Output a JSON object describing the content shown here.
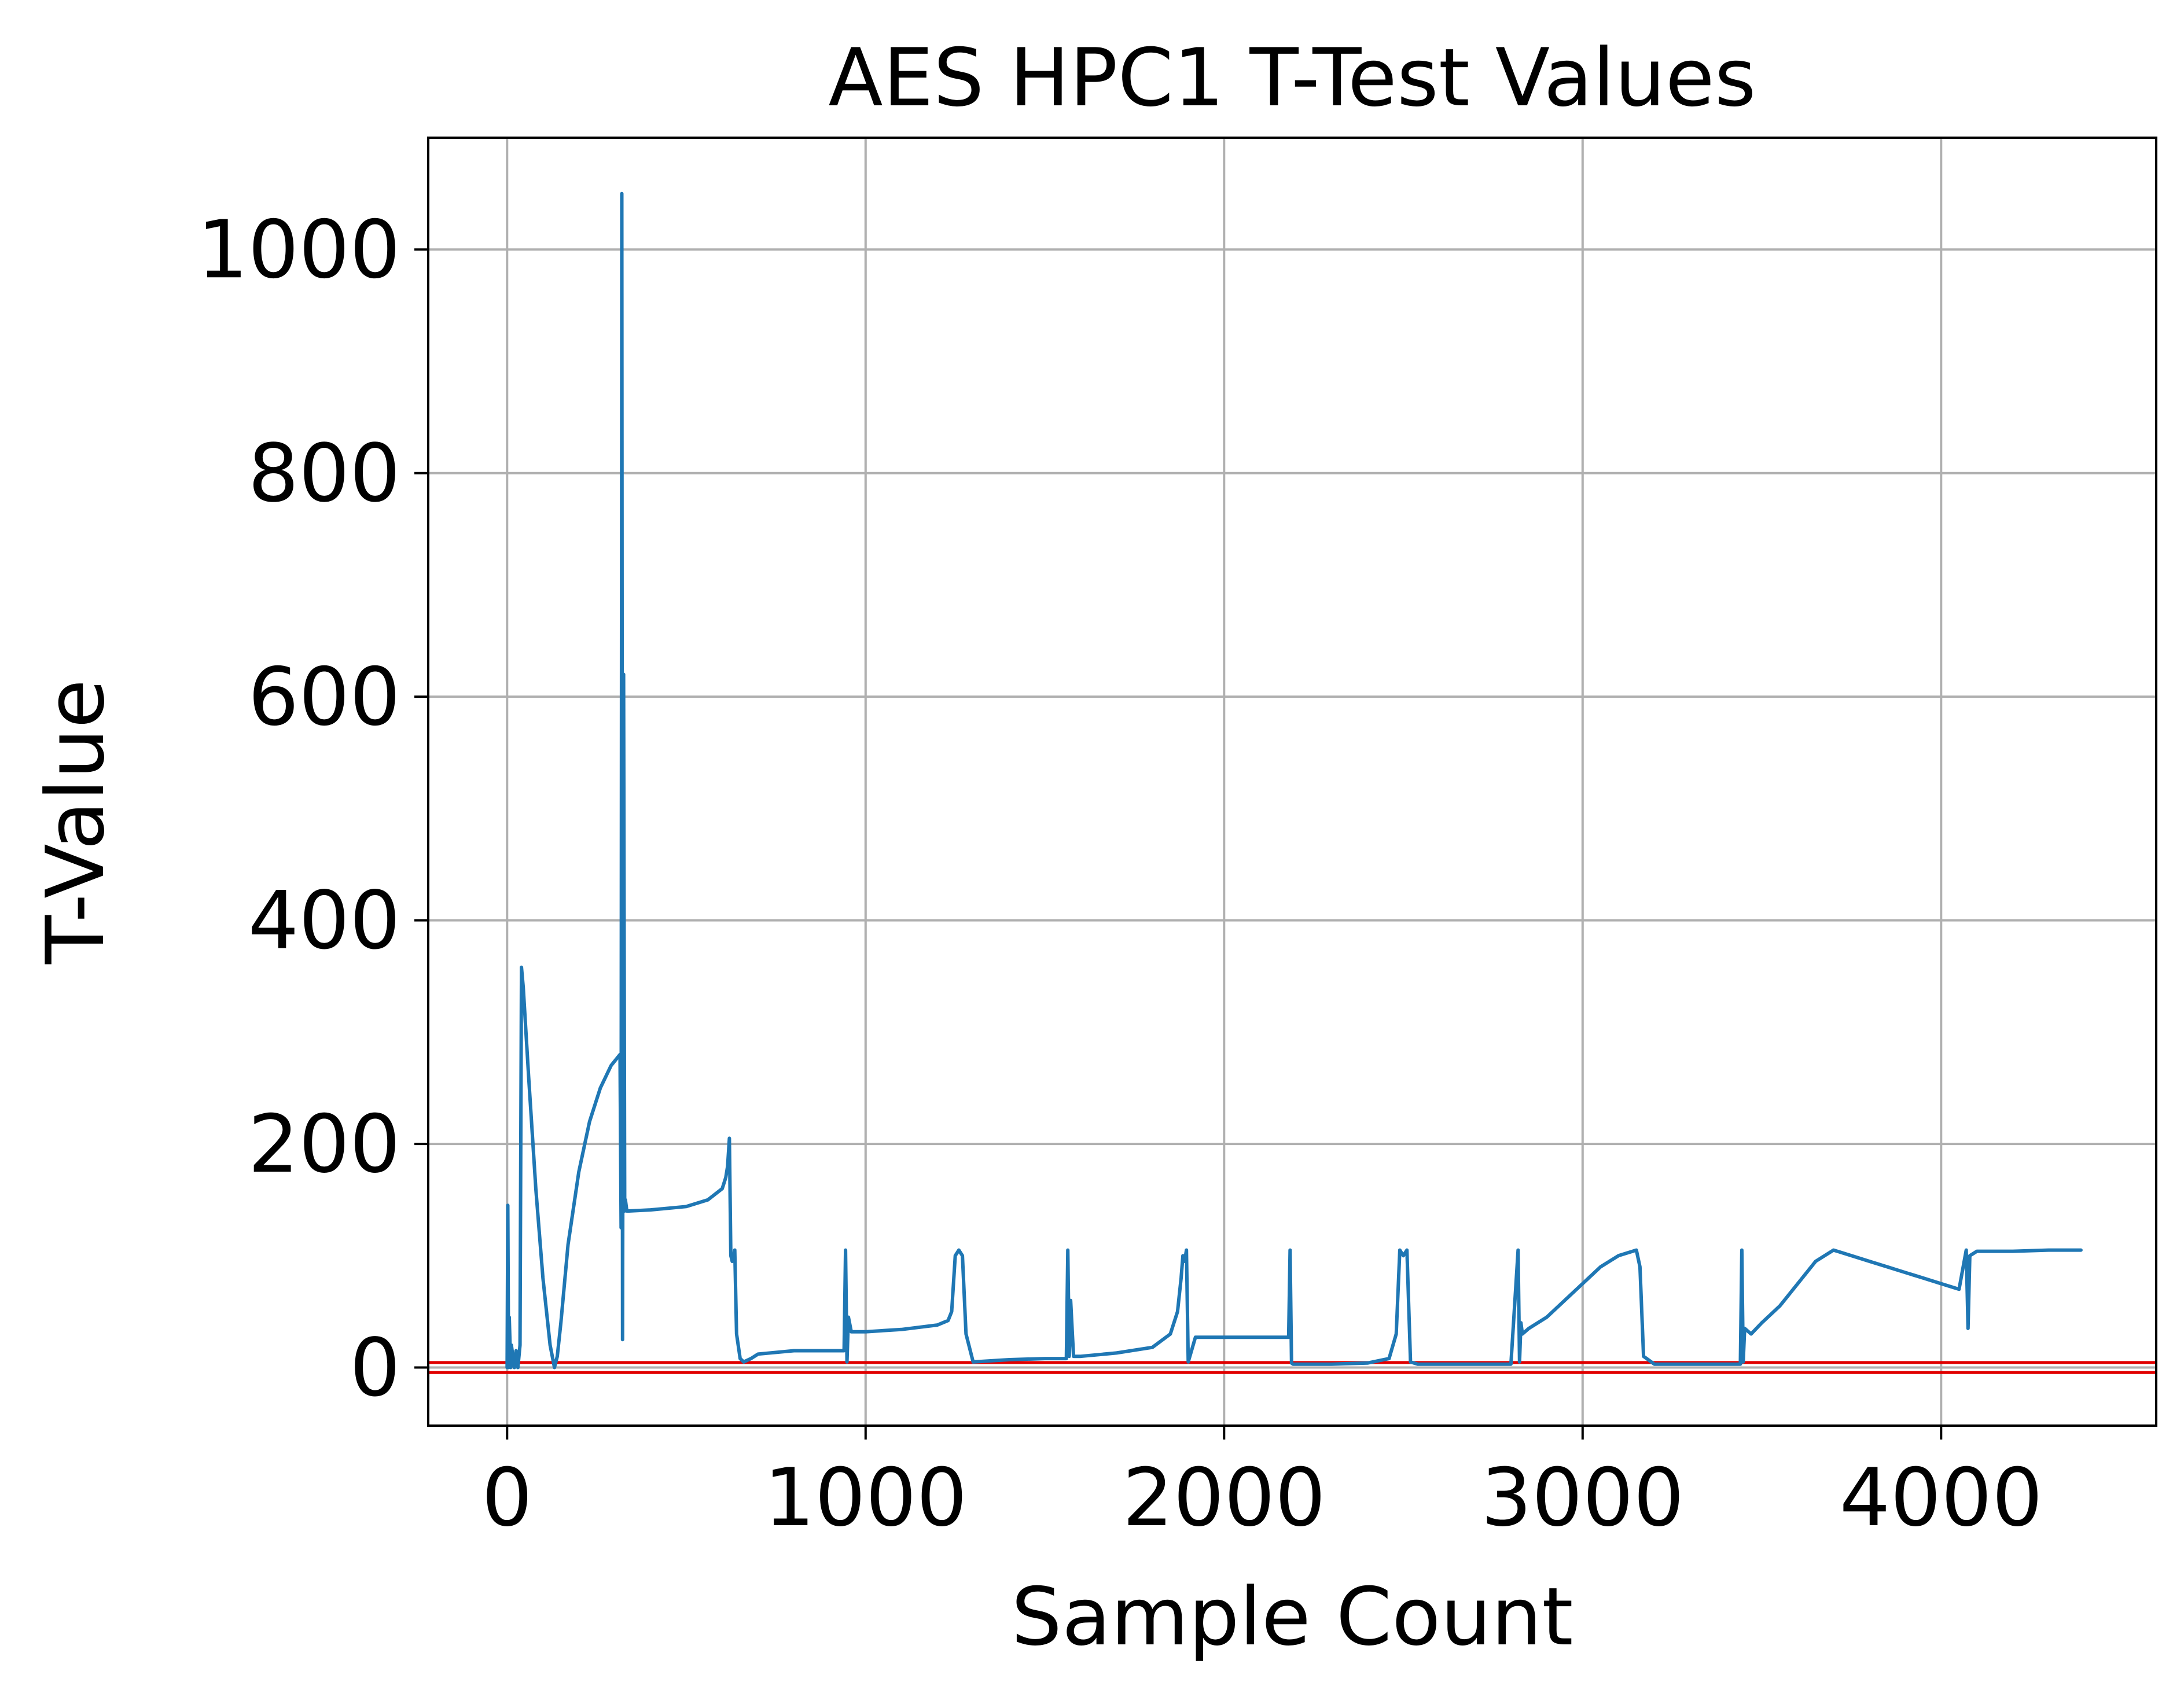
{
  "chart_data": {
    "type": "line",
    "title": "AES HPC1 T-Test Values",
    "xlabel": "Sample Count",
    "ylabel": "T-Value",
    "xlim": [
      -220,
      4600
    ],
    "ylim": [
      -52,
      1100
    ],
    "xticks": [
      0,
      1000,
      2000,
      3000,
      4000
    ],
    "yticks": [
      0,
      200,
      400,
      600,
      800,
      1000
    ],
    "grid": true,
    "series_color": "#1f77b4",
    "threshold_color": "#e00000",
    "thresholds": [
      4.5,
      -4.5
    ],
    "series": [
      {
        "x": [
          0,
          2,
          4,
          6,
          10,
          12,
          20,
          25,
          30,
          36,
          40,
          45,
          60,
          80,
          100,
          120,
          132,
          140,
          150,
          170,
          200,
          230,
          260,
          290,
          315,
          318,
          320,
          322,
          325,
          328,
          330,
          334,
          340,
          400,
          500,
          560,
          600,
          610,
          615,
          620,
          624,
          628,
          635,
          640,
          650,
          660,
          680,
          700,
          800,
          900,
          940,
          944,
          948,
          952,
          960,
          1000,
          1100,
          1200,
          1230,
          1240,
          1250,
          1260,
          1270,
          1280,
          1300,
          1400,
          1500,
          1560,
          1564,
          1568,
          1572,
          1580,
          1600,
          1700,
          1800,
          1850,
          1870,
          1880,
          1885,
          1890,
          1895,
          1900,
          1920,
          2000,
          2100,
          2180,
          2184,
          2188,
          2192,
          2200,
          2300,
          2400,
          2460,
          2480,
          2490,
          2500,
          2510,
          2520,
          2540,
          2600,
          2700,
          2800,
          2820,
          2824,
          2828,
          2832,
          2850,
          2900,
          2950,
          3000,
          3050,
          3100,
          3150,
          3160,
          3170,
          3200,
          3300,
          3400,
          3440,
          3444,
          3448,
          3452,
          3470,
          3500,
          3550,
          3600,
          3650,
          3700,
          3750,
          3800,
          3850,
          3900,
          3950,
          4000,
          4050,
          4070,
          4075,
          4080,
          4100,
          4200,
          4300,
          4390
        ],
        "y": [
          0,
          145,
          0,
          45,
          0,
          20,
          0,
          15,
          0,
          20,
          358,
          340,
          260,
          160,
          80,
          20,
          0,
          10,
          40,
          110,
          175,
          220,
          250,
          270,
          280,
          125,
          1050,
          25,
          620,
          140,
          150,
          140,
          140,
          141,
          144,
          150,
          160,
          170,
          180,
          205,
          100,
          95,
          105,
          30,
          8,
          5,
          8,
          12,
          15,
          15,
          15,
          105,
          5,
          45,
          32,
          32,
          34,
          38,
          42,
          50,
          100,
          105,
          100,
          30,
          5,
          7,
          8,
          8,
          105,
          10,
          60,
          10,
          10,
          13,
          18,
          30,
          50,
          80,
          100,
          95,
          105,
          5,
          27,
          27,
          27,
          27,
          105,
          4,
          3,
          3,
          3,
          4,
          8,
          30,
          105,
          100,
          105,
          5,
          3,
          3,
          3,
          3,
          105,
          5,
          40,
          30,
          35,
          45,
          60,
          75,
          90,
          100,
          105,
          90,
          10,
          3,
          3,
          3,
          3,
          105,
          5,
          35,
          30,
          40,
          55,
          75,
          95,
          105,
          100,
          95,
          90,
          85,
          80,
          75,
          70,
          105,
          35,
          100,
          104,
          104,
          105,
          105
        ]
      }
    ]
  }
}
